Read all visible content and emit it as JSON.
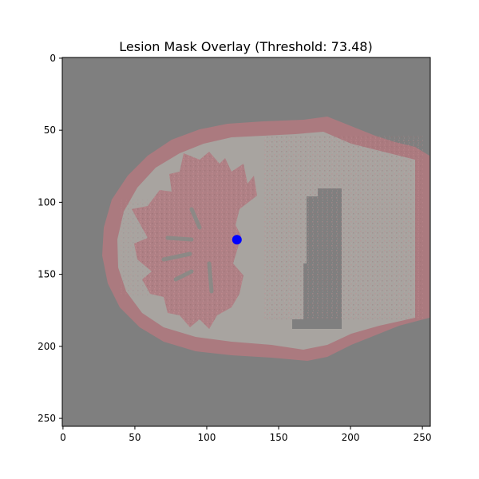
{
  "title": "Lesion Mask Overlay (Threshold: 73.48)",
  "image": {
    "width": 256,
    "height": 256,
    "background_color": "#7f7f7f",
    "overlay_color": "#b07a80",
    "tissue_color": "#a8a4a0"
  },
  "axes": {
    "x_ticks": [
      0,
      50,
      100,
      150,
      200,
      250
    ],
    "y_ticks": [
      0,
      50,
      100,
      150,
      200,
      250
    ]
  },
  "marker": {
    "x": 121,
    "y": 126,
    "color": "#0000ff"
  }
}
